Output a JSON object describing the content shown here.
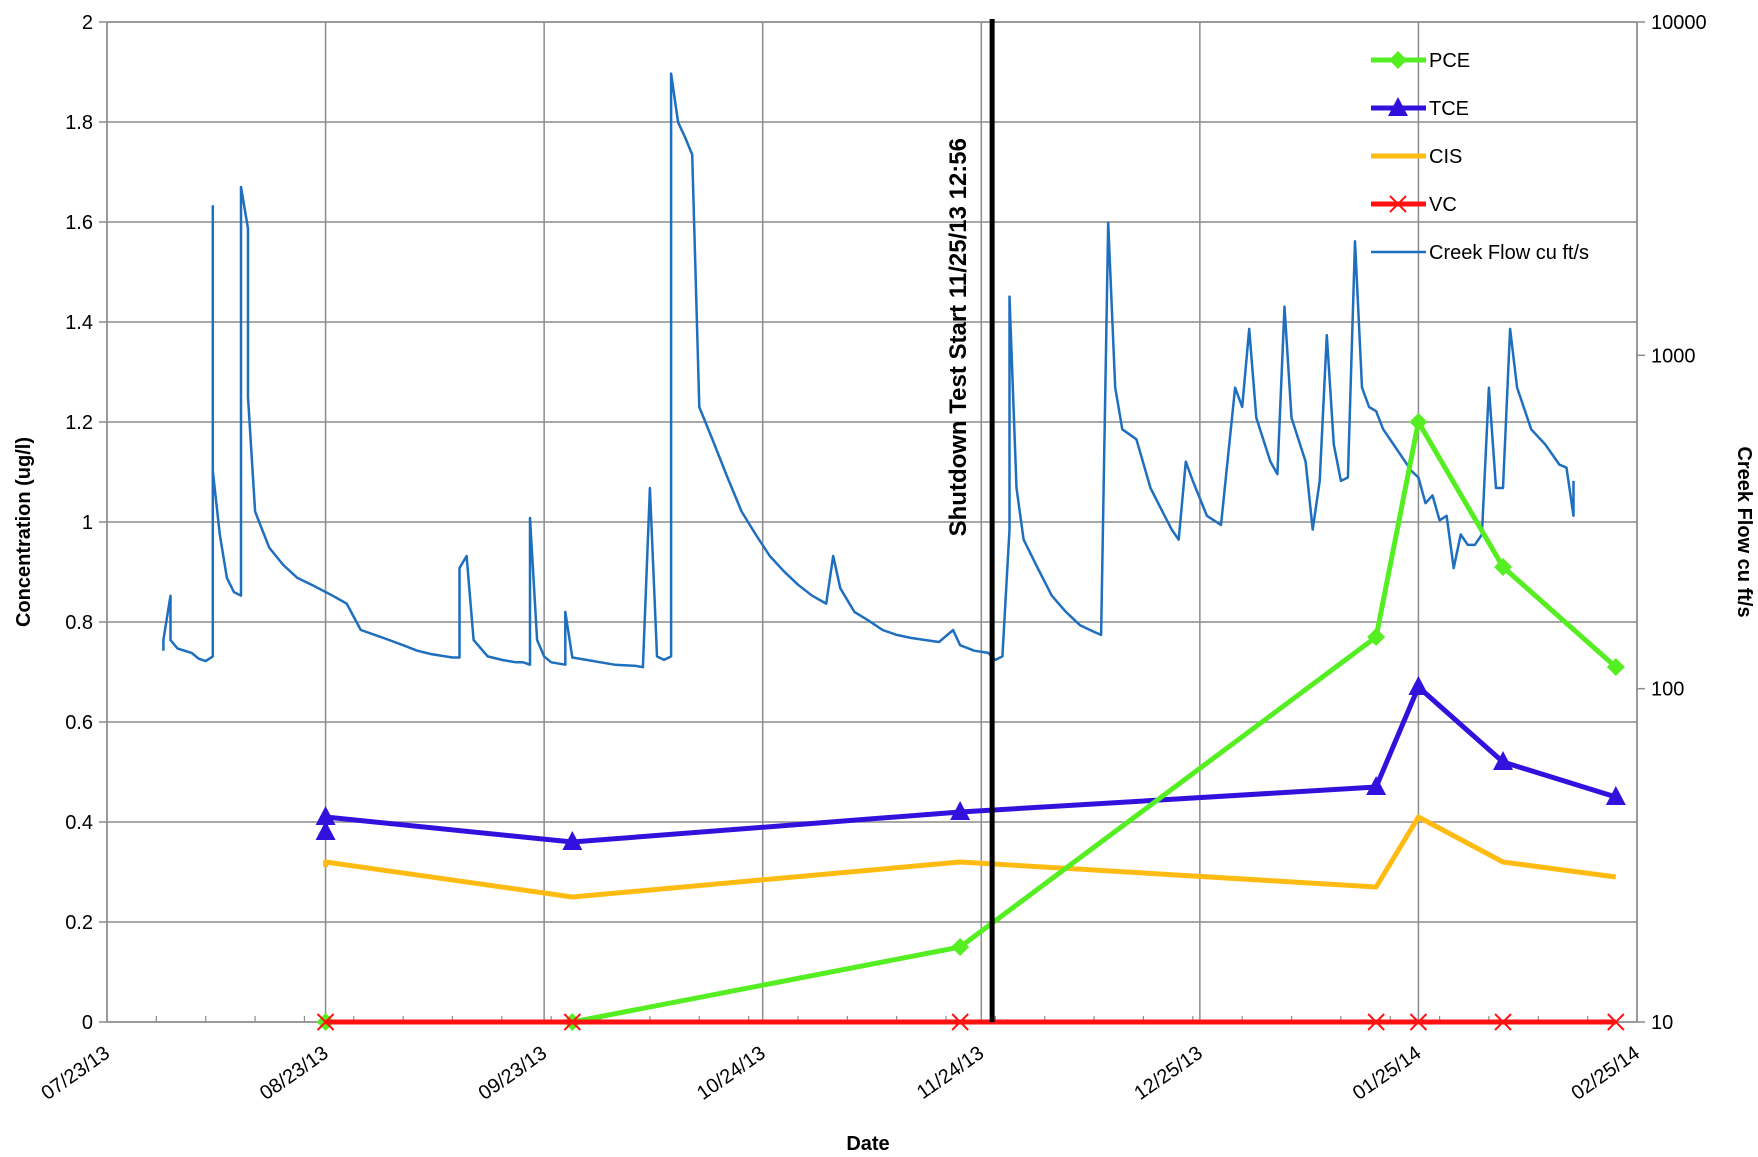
{
  "chart_data": {
    "type": "line",
    "title": "",
    "xlabel": "Date",
    "ylabel": "Concentration (ug/l)",
    "y2label": "Creek Flow  cu ft/s",
    "x_ticks": [
      "07/23/13",
      "08/23/13",
      "09/23/13",
      "10/24/13",
      "11/24/13",
      "12/25/13",
      "01/25/14",
      "02/25/14"
    ],
    "x_tick_dates": [
      "2013-07-23",
      "2013-08-23",
      "2013-09-23",
      "2013-10-24",
      "2013-11-24",
      "2013-12-25",
      "2014-01-25",
      "2014-02-25"
    ],
    "y_ticks": [
      "0",
      "0.2",
      "0.4",
      "0.6",
      "0.8",
      "1",
      "1.2",
      "1.4",
      "1.6",
      "1.8",
      "2"
    ],
    "y2_ticks": [
      "10",
      "100",
      "1000",
      "10000"
    ],
    "ylim": [
      0,
      2
    ],
    "y2lim": [
      10,
      10000
    ],
    "y2_scale": "log",
    "grid": true,
    "legend_position": "top-right",
    "annotation": {
      "text": "Shutdown Test Start 11/25/13 12:56",
      "date": "2013-11-25T12:56"
    },
    "series": [
      {
        "name": "PCE",
        "color": "#55ee22",
        "marker": "diamond",
        "axis": "left",
        "points": [
          [
            "2013-08-23",
            0.0
          ],
          [
            "2013-09-27",
            0.0
          ],
          [
            "2013-11-21",
            0.15
          ],
          [
            "2014-01-19",
            0.77
          ],
          [
            "2014-01-25",
            1.2
          ],
          [
            "2014-02-06",
            0.91
          ],
          [
            "2014-02-22",
            0.71
          ]
        ]
      },
      {
        "name": "TCE",
        "color": "#3311dd",
        "marker": "triangle",
        "axis": "left",
        "points": [
          [
            "2013-08-23",
            0.38
          ],
          [
            "2013-08-23",
            0.41
          ],
          [
            "2013-09-27",
            0.36
          ],
          [
            "2013-11-21",
            0.42
          ],
          [
            "2014-01-19",
            0.47
          ],
          [
            "2014-01-25",
            0.67
          ],
          [
            "2014-02-06",
            0.52
          ],
          [
            "2014-02-22",
            0.45
          ]
        ]
      },
      {
        "name": "CIS",
        "color": "#ffbb11",
        "marker": "none",
        "axis": "left",
        "points": [
          [
            "2013-08-23",
            0.31
          ],
          [
            "2013-08-23",
            0.32
          ],
          [
            "2013-09-27",
            0.25
          ],
          [
            "2013-11-21",
            0.32
          ],
          [
            "2014-01-19",
            0.27
          ],
          [
            "2014-01-25",
            0.41
          ],
          [
            "2014-02-06",
            0.32
          ],
          [
            "2014-02-22",
            0.29
          ]
        ]
      },
      {
        "name": "VC",
        "color": "#ff1111",
        "marker": "x",
        "axis": "left",
        "points": [
          [
            "2013-08-23",
            0
          ],
          [
            "2013-09-27",
            0
          ],
          [
            "2013-11-21",
            0
          ],
          [
            "2014-01-19",
            0
          ],
          [
            "2014-01-25",
            0
          ],
          [
            "2014-02-06",
            0
          ],
          [
            "2014-02-22",
            0
          ]
        ]
      },
      {
        "name": "Creek Flow cu ft/s",
        "color": "#1f6fbf",
        "marker": "none",
        "axis": "right",
        "points": [
          [
            "2013-07-31",
            130
          ],
          [
            "2013-07-31",
            140
          ],
          [
            "2013-08-01",
            190
          ],
          [
            "2013-08-01",
            140
          ],
          [
            "2013-08-02",
            132
          ],
          [
            "2013-08-04",
            128
          ],
          [
            "2013-08-05",
            123
          ],
          [
            "2013-08-06",
            121
          ],
          [
            "2013-08-07",
            125
          ],
          [
            "2013-08-07",
            130
          ],
          [
            "2013-08-07",
            2800
          ],
          [
            "2013-08-07",
            450
          ],
          [
            "2013-08-08",
            290
          ],
          [
            "2013-08-09",
            215
          ],
          [
            "2013-08-10",
            195
          ],
          [
            "2013-08-11",
            190
          ],
          [
            "2013-08-11",
            3200
          ],
          [
            "2013-08-12",
            2400
          ],
          [
            "2013-08-12",
            750
          ],
          [
            "2013-08-13",
            340
          ],
          [
            "2013-08-14",
            300
          ],
          [
            "2013-08-15",
            265
          ],
          [
            "2013-08-17",
            235
          ],
          [
            "2013-08-19",
            215
          ],
          [
            "2013-08-21",
            205
          ],
          [
            "2013-08-23",
            195
          ],
          [
            "2013-08-24",
            190
          ],
          [
            "2013-08-26",
            180
          ],
          [
            "2013-08-28",
            150
          ],
          [
            "2013-08-30",
            145
          ],
          [
            "2013-09-01",
            140
          ],
          [
            "2013-09-03",
            135
          ],
          [
            "2013-09-05",
            130
          ],
          [
            "2013-09-07",
            127
          ],
          [
            "2013-09-09",
            125
          ],
          [
            "2013-09-10",
            124
          ],
          [
            "2013-09-11",
            124
          ],
          [
            "2013-09-11",
            230
          ],
          [
            "2013-09-12",
            250
          ],
          [
            "2013-09-13",
            140
          ],
          [
            "2013-09-15",
            125
          ],
          [
            "2013-09-17",
            122
          ],
          [
            "2013-09-19",
            120
          ],
          [
            "2013-09-20",
            120
          ],
          [
            "2013-09-21",
            118
          ],
          [
            "2013-09-21",
            325
          ],
          [
            "2013-09-22",
            140
          ],
          [
            "2013-09-23",
            125
          ],
          [
            "2013-09-24",
            120
          ],
          [
            "2013-09-26",
            118
          ],
          [
            "2013-09-26",
            170
          ],
          [
            "2013-09-27",
            124
          ],
          [
            "2013-09-29",
            122
          ],
          [
            "2013-10-01",
            120
          ],
          [
            "2013-10-03",
            118
          ],
          [
            "2013-10-06",
            117
          ],
          [
            "2013-10-07",
            116
          ],
          [
            "2013-10-08",
            400
          ],
          [
            "2013-10-09",
            125
          ],
          [
            "2013-10-10",
            122
          ],
          [
            "2013-10-11",
            125
          ],
          [
            "2013-10-11",
            7000
          ],
          [
            "2013-10-12",
            5000
          ],
          [
            "2013-10-13",
            4500
          ],
          [
            "2013-10-14",
            4000
          ],
          [
            "2013-10-15",
            700
          ],
          [
            "2013-10-17",
            550
          ],
          [
            "2013-10-19",
            430
          ],
          [
            "2013-10-21",
            340
          ],
          [
            "2013-10-23",
            290
          ],
          [
            "2013-10-25",
            250
          ],
          [
            "2013-10-27",
            225
          ],
          [
            "2013-10-29",
            205
          ],
          [
            "2013-10-31",
            190
          ],
          [
            "2013-11-02",
            180
          ],
          [
            "2013-11-03",
            250
          ],
          [
            "2013-11-04",
            200
          ],
          [
            "2013-11-06",
            170
          ],
          [
            "2013-11-08",
            160
          ],
          [
            "2013-11-10",
            150
          ],
          [
            "2013-11-12",
            145
          ],
          [
            "2013-11-14",
            142
          ],
          [
            "2013-11-16",
            140
          ],
          [
            "2013-11-18",
            138
          ],
          [
            "2013-11-20",
            150
          ],
          [
            "2013-11-21",
            135
          ],
          [
            "2013-11-23",
            130
          ],
          [
            "2013-11-25",
            128
          ],
          [
            "2013-11-26",
            122
          ],
          [
            "2013-11-27",
            125
          ],
          [
            "2013-11-28",
            300
          ],
          [
            "2013-11-28",
            1500
          ],
          [
            "2013-11-29",
            400
          ],
          [
            "2013-11-30",
            280
          ],
          [
            "2013-12-02",
            230
          ],
          [
            "2013-12-04",
            190
          ],
          [
            "2013-12-06",
            170
          ],
          [
            "2013-12-08",
            155
          ],
          [
            "2013-12-10",
            148
          ],
          [
            "2013-12-11",
            145
          ],
          [
            "2013-12-12",
            2500
          ],
          [
            "2013-12-13",
            800
          ],
          [
            "2013-12-14",
            600
          ],
          [
            "2013-12-16",
            560
          ],
          [
            "2013-12-18",
            400
          ],
          [
            "2013-12-20",
            330
          ],
          [
            "2013-12-21",
            300
          ],
          [
            "2013-12-22",
            280
          ],
          [
            "2013-12-23",
            480
          ],
          [
            "2013-12-24",
            420
          ],
          [
            "2013-12-26",
            330
          ],
          [
            "2013-12-28",
            310
          ],
          [
            "2013-12-30",
            800
          ],
          [
            "2013-12-31",
            700
          ],
          [
            "2014-01-01",
            1200
          ],
          [
            "2014-01-02",
            650
          ],
          [
            "2014-01-04",
            480
          ],
          [
            "2014-01-05",
            440
          ],
          [
            "2014-01-06",
            1400
          ],
          [
            "2014-01-07",
            650
          ],
          [
            "2014-01-09",
            480
          ],
          [
            "2014-01-10",
            300
          ],
          [
            "2014-01-11",
            420
          ],
          [
            "2014-01-12",
            1150
          ],
          [
            "2014-01-13",
            540
          ],
          [
            "2014-01-14",
            420
          ],
          [
            "2014-01-15",
            430
          ],
          [
            "2014-01-16",
            2200
          ],
          [
            "2014-01-17",
            800
          ],
          [
            "2014-01-18",
            700
          ],
          [
            "2014-01-19",
            680
          ],
          [
            "2014-01-20",
            600
          ],
          [
            "2014-01-22",
            520
          ],
          [
            "2014-01-24",
            450
          ],
          [
            "2014-01-25",
            430
          ],
          [
            "2014-01-26",
            360
          ],
          [
            "2014-01-27",
            380
          ],
          [
            "2014-01-28",
            320
          ],
          [
            "2014-01-29",
            330
          ],
          [
            "2014-01-30",
            230
          ],
          [
            "2014-01-31",
            290
          ],
          [
            "2014-02-01",
            270
          ],
          [
            "2014-02-02",
            270
          ],
          [
            "2014-02-03",
            290
          ],
          [
            "2014-02-04",
            800
          ],
          [
            "2014-02-05",
            400
          ],
          [
            "2014-02-06",
            400
          ],
          [
            "2014-02-07",
            1200
          ],
          [
            "2014-02-08",
            800
          ],
          [
            "2014-02-10",
            600
          ],
          [
            "2014-02-12",
            540
          ],
          [
            "2014-02-14",
            470
          ],
          [
            "2014-02-15",
            460
          ],
          [
            "2014-02-16",
            330
          ],
          [
            "2014-02-16",
            420
          ]
        ]
      }
    ]
  }
}
